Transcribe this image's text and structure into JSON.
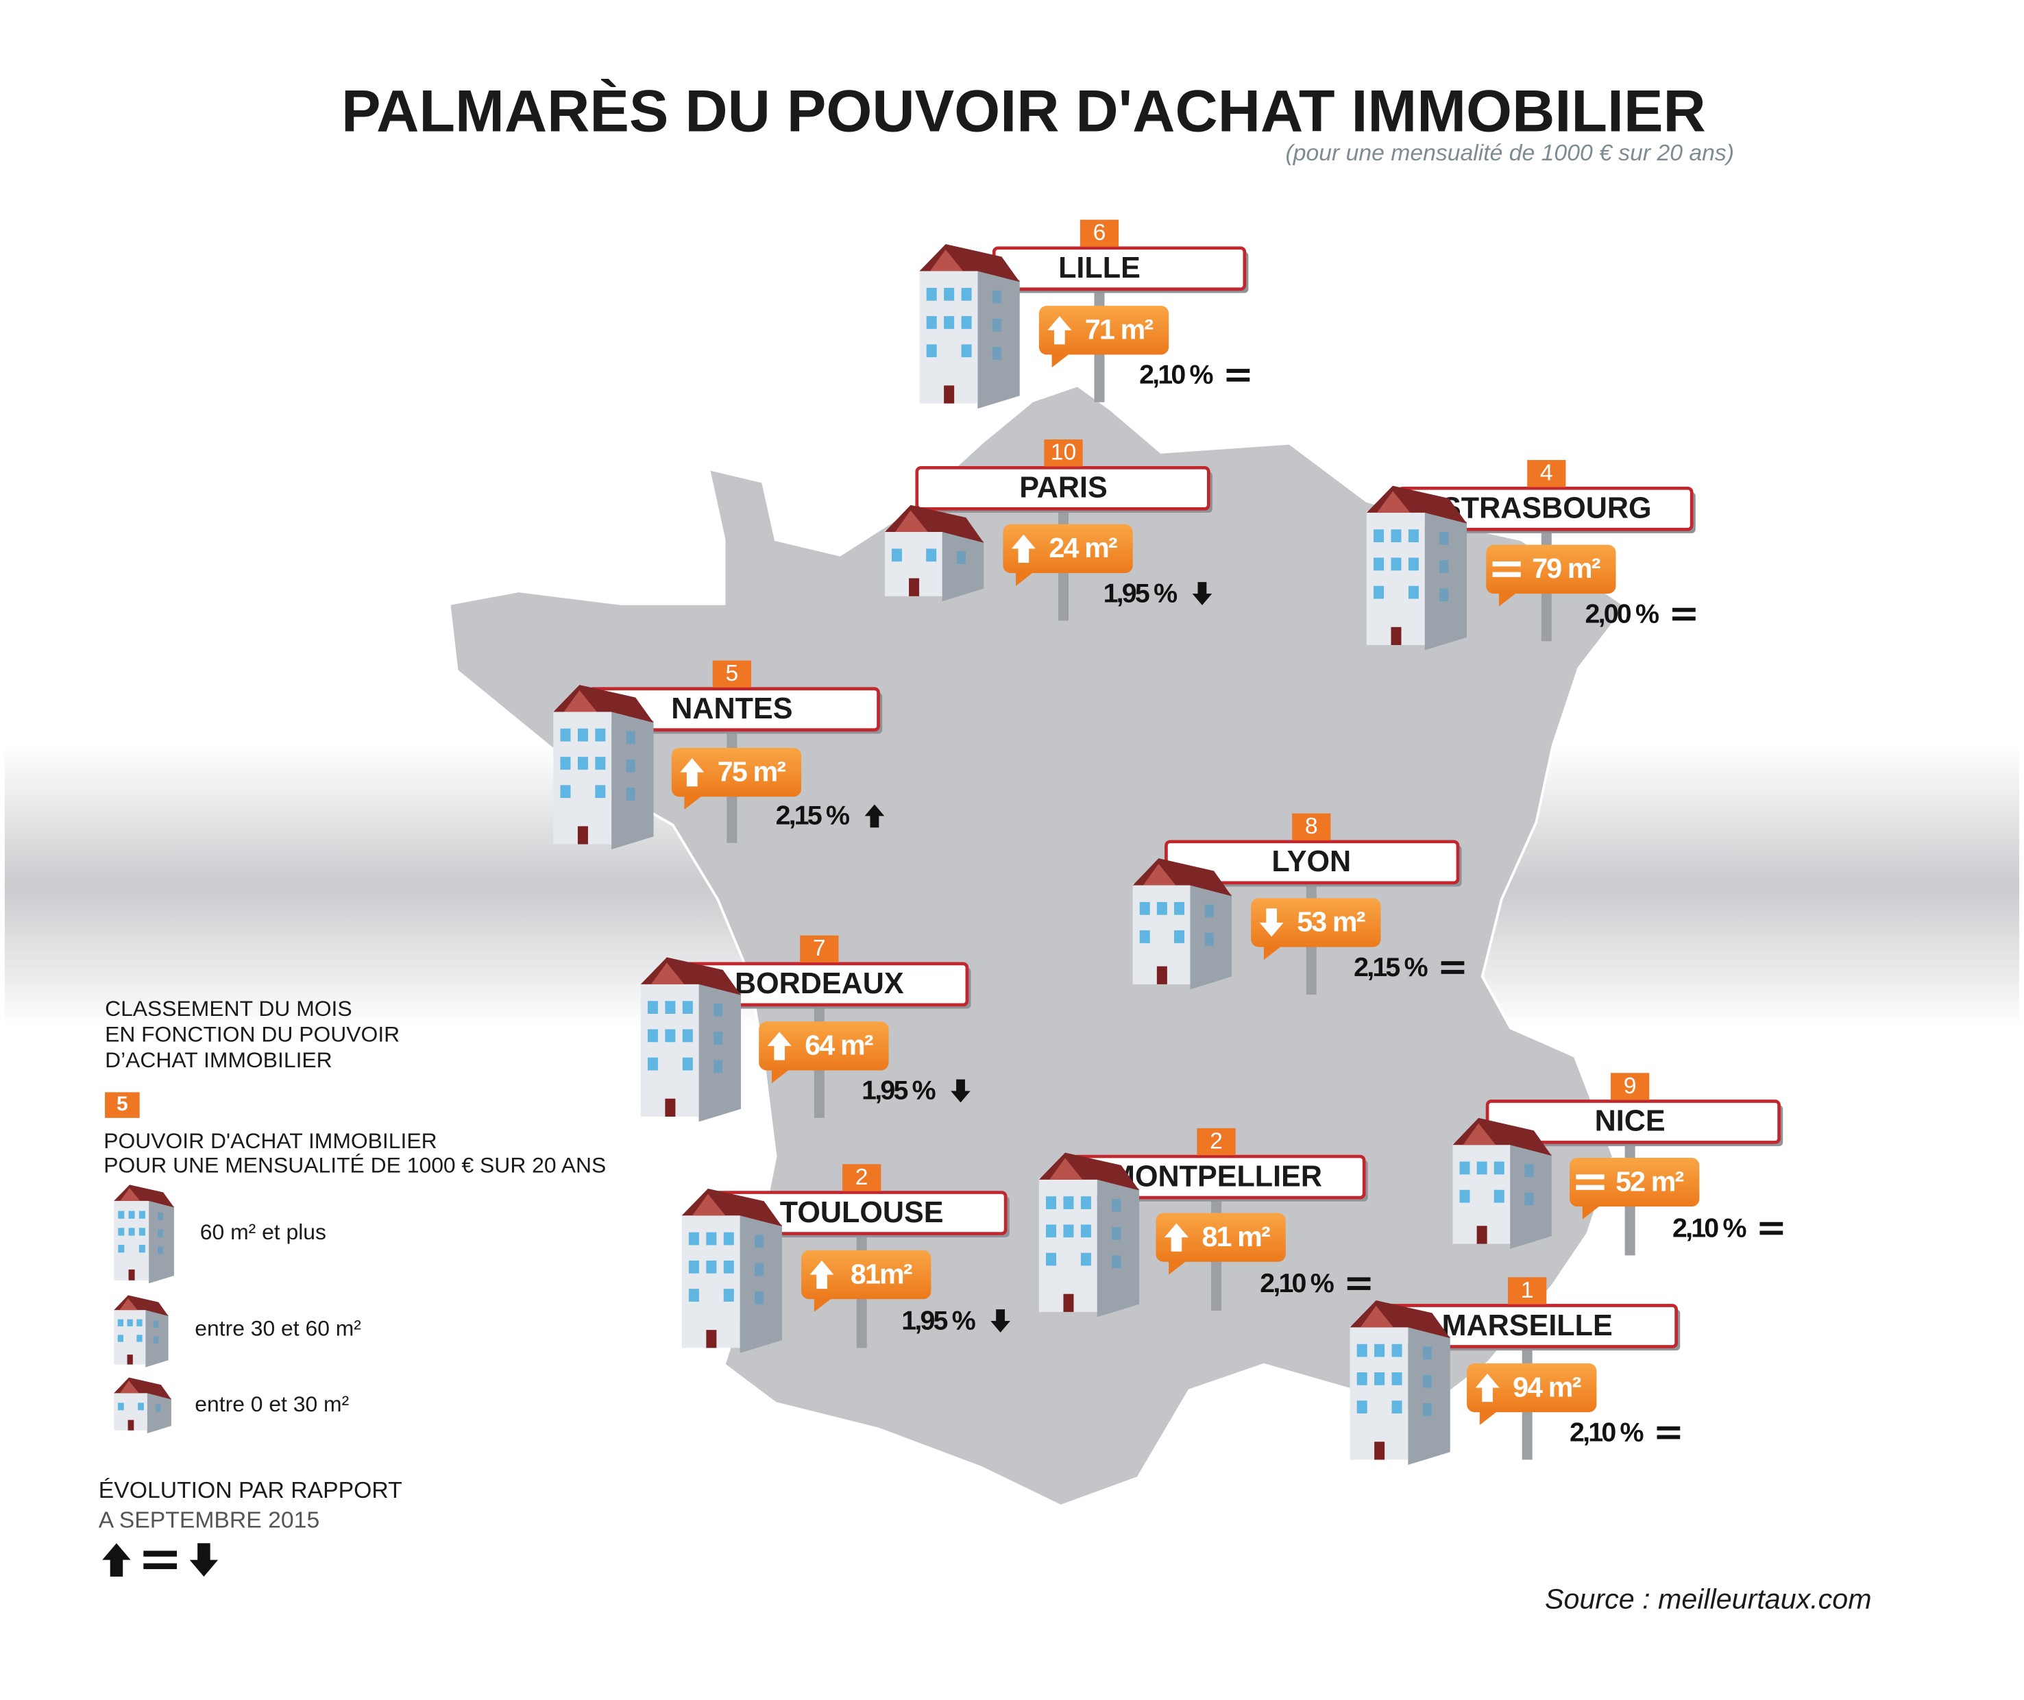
{
  "header": {
    "title": "PALMARÈS DU POUVOIR D'ACHAT IMMOBILIER",
    "subtitle": "(pour une mensualité de 1000 € sur 20 ans)"
  },
  "cities": [
    {
      "rank": "6",
      "name": "LILLE",
      "area": "71 m²",
      "area_trend": "up",
      "rate": "2,10 %",
      "rate_trend": "equal",
      "building": "large"
    },
    {
      "rank": "10",
      "name": "PARIS",
      "area": "24 m²",
      "area_trend": "up",
      "rate": "1,95 %",
      "rate_trend": "down",
      "building": "small"
    },
    {
      "rank": "4",
      "name": "STRASBOURG",
      "area": "79 m²",
      "area_trend": "equal",
      "rate": "2,00 %",
      "rate_trend": "equal",
      "building": "large"
    },
    {
      "rank": "5",
      "name": "NANTES",
      "area": "75 m²",
      "area_trend": "up",
      "rate": "2,15 %",
      "rate_trend": "up",
      "building": "large"
    },
    {
      "rank": "8",
      "name": "LYON",
      "area": "53 m²",
      "area_trend": "down",
      "rate": "2,15 %",
      "rate_trend": "equal",
      "building": "medium"
    },
    {
      "rank": "7",
      "name": "BORDEAUX",
      "area": "64 m²",
      "area_trend": "up",
      "rate": "1,95 %",
      "rate_trend": "down",
      "building": "large"
    },
    {
      "rank": "2",
      "name": "TOULOUSE",
      "area": "81m²",
      "area_trend": "up",
      "rate": "1,95 %",
      "rate_trend": "down",
      "building": "large"
    },
    {
      "rank": "2",
      "name": "MONTPELLIER",
      "area": "81 m²",
      "area_trend": "up",
      "rate": "2,10 %",
      "rate_trend": "equal",
      "building": "large"
    },
    {
      "rank": "9",
      "name": "NICE",
      "area": "52 m²",
      "area_trend": "equal",
      "rate": "2,10 %",
      "rate_trend": "equal",
      "building": "medium"
    },
    {
      "rank": "1",
      "name": "MARSEILLE",
      "area": "94 m²",
      "area_trend": "up",
      "rate": "2,10 %",
      "rate_trend": "equal",
      "building": "large"
    }
  ],
  "legend": {
    "ranking_title": [
      "CLASSEMENT DU MOIS",
      "EN FONCTION DU POUVOIR",
      "D’ACHAT IMMOBILIER"
    ],
    "ranking_example": "5",
    "area_title": [
      "POUVOIR D'ACHAT IMMOBILIER",
      "POUR UNE MENSUALITÉ DE 1000 € SUR 20 ANS"
    ],
    "sizes": [
      {
        "label": "60 m² et plus",
        "building": "large"
      },
      {
        "label": "entre 30 et 60 m²",
        "building": "medium"
      },
      {
        "label": "entre 0 et 30 m²",
        "building": "small"
      }
    ],
    "evolution_title": [
      "ÉVOLUTION PAR RAPPORT",
      "A SEPTEMBRE 2015"
    ],
    "evolution_symbols": [
      "up",
      "equal",
      "down"
    ]
  },
  "source": "Source : meilleurtaux.com"
}
